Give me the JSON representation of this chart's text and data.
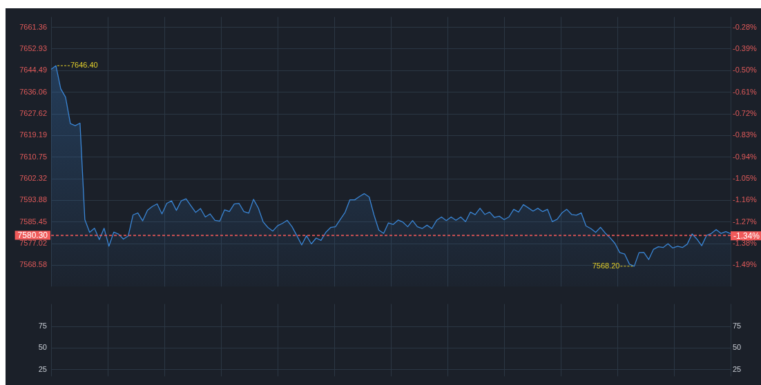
{
  "chart_data": [
    {
      "type": "area",
      "categories": [
        null,
        null,
        null,
        null,
        null,
        null,
        null,
        null,
        null,
        null,
        null,
        null,
        null,
        null,
        null,
        null,
        null,
        null,
        null,
        null,
        null,
        null,
        null,
        null,
        null,
        null,
        null,
        null,
        null,
        null,
        null,
        null,
        null,
        null,
        null,
        null,
        null,
        null,
        null,
        null,
        null,
        null,
        null,
        null,
        null,
        null,
        null,
        null,
        null,
        null,
        null,
        null,
        null,
        null,
        null,
        null,
        null,
        null,
        null,
        null,
        null,
        null,
        null,
        null,
        null,
        null,
        null,
        null,
        null,
        null,
        null,
        null,
        null,
        null,
        null,
        null,
        null,
        null,
        null,
        null,
        null,
        null,
        null,
        null,
        null,
        null,
        null,
        null,
        null,
        null,
        null,
        null,
        null,
        null,
        null,
        null,
        null,
        null,
        null,
        null,
        null,
        null,
        null,
        null,
        null,
        null,
        null,
        null,
        null,
        null,
        null,
        null,
        null,
        null,
        null,
        null,
        null,
        null,
        null,
        null,
        null,
        null,
        null,
        null,
        null,
        null,
        null,
        null,
        null,
        null,
        null,
        null,
        null,
        null,
        null,
        null,
        null,
        null,
        null,
        null,
        null,
        null
      ],
      "series": [
        {
          "color": "#3a86d6",
          "values": [
            7645,
            7646.4,
            7637.4,
            7634.1,
            7623.8,
            7623,
            7624,
            7586.4,
            7581.4,
            7583,
            7578.6,
            7583,
            7576.0,
            7581.5,
            7580.7,
            7578.8,
            7580,
            7588.2,
            7589,
            7585.9,
            7590,
            7591.5,
            7592.5,
            7588.6,
            7592.7,
            7593.7,
            7590,
            7593.7,
            7594.5,
            7591.8,
            7589.2,
            7590.7,
            7587.4,
            7588.6,
            7586.1,
            7585.8,
            7590.2,
            7589.5,
            7592.5,
            7592.7,
            7589.5,
            7588.9,
            7594.3,
            7590.9,
            7585.5,
            7583.3,
            7581.9,
            7584,
            7584.9,
            7586.1,
            7583.6,
            7580.1,
            7576.5,
            7580.1,
            7576.9,
            7579.2,
            7578.3,
            7581.4,
            7583.3,
            7583.6,
            7586.4,
            7589.2,
            7594.1,
            7594.1,
            7595.4,
            7596.5,
            7595.2,
            7588.2,
            7582.3,
            7581,
            7585.1,
            7584.5,
            7586.2,
            7585.4,
            7583.6,
            7586,
            7583.6,
            7582.9,
            7584.2,
            7582.9,
            7586.1,
            7587.4,
            7586,
            7587.4,
            7586.1,
            7587.4,
            7585.6,
            7589.3,
            7588.3,
            7590.8,
            7588.4,
            7589.3,
            7587.2,
            7587.7,
            7586.4,
            7587.4,
            7590.4,
            7589.3,
            7592.2,
            7591,
            7589.7,
            7590.8,
            7589.5,
            7590.4,
            7585.6,
            7586.5,
            7589,
            7590.4,
            7588.4,
            7588.1,
            7589,
            7583.9,
            7582.9,
            7581.4,
            7583.4,
            7581.1,
            7579.3,
            7577.1,
            7573.5,
            7573.0,
            7569.0,
            7568.2,
            7573.5,
            7573.6,
            7570.8,
            7574.8,
            7575.8,
            7575.5,
            7577,
            7575.3,
            7576,
            7575.5,
            7576.8,
            7580.8,
            7578.8,
            7576.2,
            7580.2,
            7581,
            7582.5,
            7581,
            7581.7,
            7580.9
          ]
        }
      ],
      "ylim": [
        7560.25,
        7665.4
      ],
      "yticks": [
        7568.58,
        7577.02,
        7585.45,
        7593.88,
        7602.32,
        7610.75,
        7619.19,
        7627.62,
        7636.06,
        7644.49,
        7652.93,
        7661.36
      ],
      "y2lim": [
        -1.599,
        -0.227
      ],
      "y2ticks": [
        {
          "value": -1.49,
          "label": "-1.49%"
        },
        {
          "value": -1.38,
          "label": "-1.38%"
        },
        {
          "value": -1.27,
          "label": "-1.27%"
        },
        {
          "value": -1.16,
          "label": "-1.16%"
        },
        {
          "value": -1.05,
          "label": "-1.05%"
        },
        {
          "value": -0.94,
          "label": "-0.94%"
        },
        {
          "value": -0.83,
          "label": "-0.83%"
        },
        {
          "value": -0.72,
          "label": "-0.72%"
        },
        {
          "value": -0.61,
          "label": "-0.61%"
        },
        {
          "value": -0.5,
          "label": "-0.50%"
        },
        {
          "value": -0.39,
          "label": "-0.39%"
        },
        {
          "value": -0.28,
          "label": "-0.28%"
        }
      ],
      "ref_lines": [
        {
          "axis": "y",
          "value": 7580.3,
          "label": "7580.30",
          "color": "#f05a5a",
          "line_style": "dashed"
        },
        {
          "axis": "y2",
          "value": -1.34,
          "label": "-1.34%",
          "color": "#f05a5a",
          "line_style": "dashed"
        }
      ],
      "annotations": [
        "7646.40",
        "7568.20"
      ],
      "grid": true,
      "tick_labels": "y"
    },
    {
      "type": "line",
      "categories": [
        null,
        null
      ],
      "ylim": [
        17.2,
        101
      ],
      "yticks": [
        25,
        50,
        75
      ],
      "y2lim": [
        17.2,
        101
      ],
      "y2ticks": [
        25,
        50,
        75
      ],
      "grid": true,
      "tick_labels": "y"
    }
  ]
}
